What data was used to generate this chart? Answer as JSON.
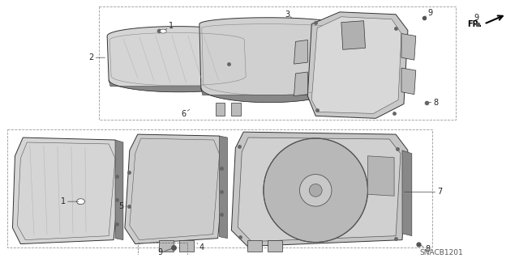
{
  "bg_color": "#ffffff",
  "fig_width": 6.4,
  "fig_height": 3.19,
  "dpi": 100,
  "diagram_code": "SNACB1201"
}
